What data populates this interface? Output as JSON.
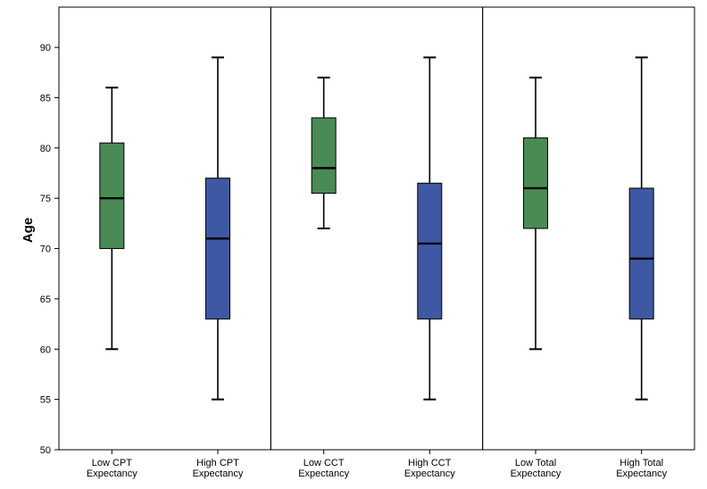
{
  "chart_data": {
    "type": "box",
    "title": "",
    "ylabel": "Age",
    "xlabel": "",
    "ylim": [
      50,
      94
    ],
    "yticks": [
      50,
      55,
      60,
      65,
      70,
      75,
      80,
      85,
      90
    ],
    "grid": false,
    "legend": "none",
    "colors": {
      "low": "#4a8a55",
      "high": "#3f58a3"
    },
    "categories": [
      [
        "Low CPT",
        "Expectancy"
      ],
      [
        "High CPT",
        "Expectancy"
      ],
      [
        "Low CCT",
        "Expectancy"
      ],
      [
        "High CCT",
        "Expectancy"
      ],
      [
        "Low Total",
        "Expectancy"
      ],
      [
        "High Total",
        "Expectancy"
      ]
    ],
    "boxes": [
      {
        "min": 60,
        "q1": 70,
        "median": 75,
        "q3": 80.5,
        "max": 86,
        "group": "low"
      },
      {
        "min": 55,
        "q1": 63,
        "median": 71,
        "q3": 77,
        "max": 89,
        "group": "high"
      },
      {
        "min": 72,
        "q1": 75.5,
        "median": 78,
        "q3": 83,
        "max": 87,
        "group": "low"
      },
      {
        "min": 55,
        "q1": 63,
        "median": 70.5,
        "q3": 76.5,
        "max": 89,
        "group": "high"
      },
      {
        "min": 60,
        "q1": 72,
        "median": 76,
        "q3": 81,
        "max": 87,
        "group": "low"
      },
      {
        "min": 55,
        "q1": 63,
        "median": 69,
        "q3": 76,
        "max": 89,
        "group": "high"
      }
    ],
    "panels": 3
  }
}
